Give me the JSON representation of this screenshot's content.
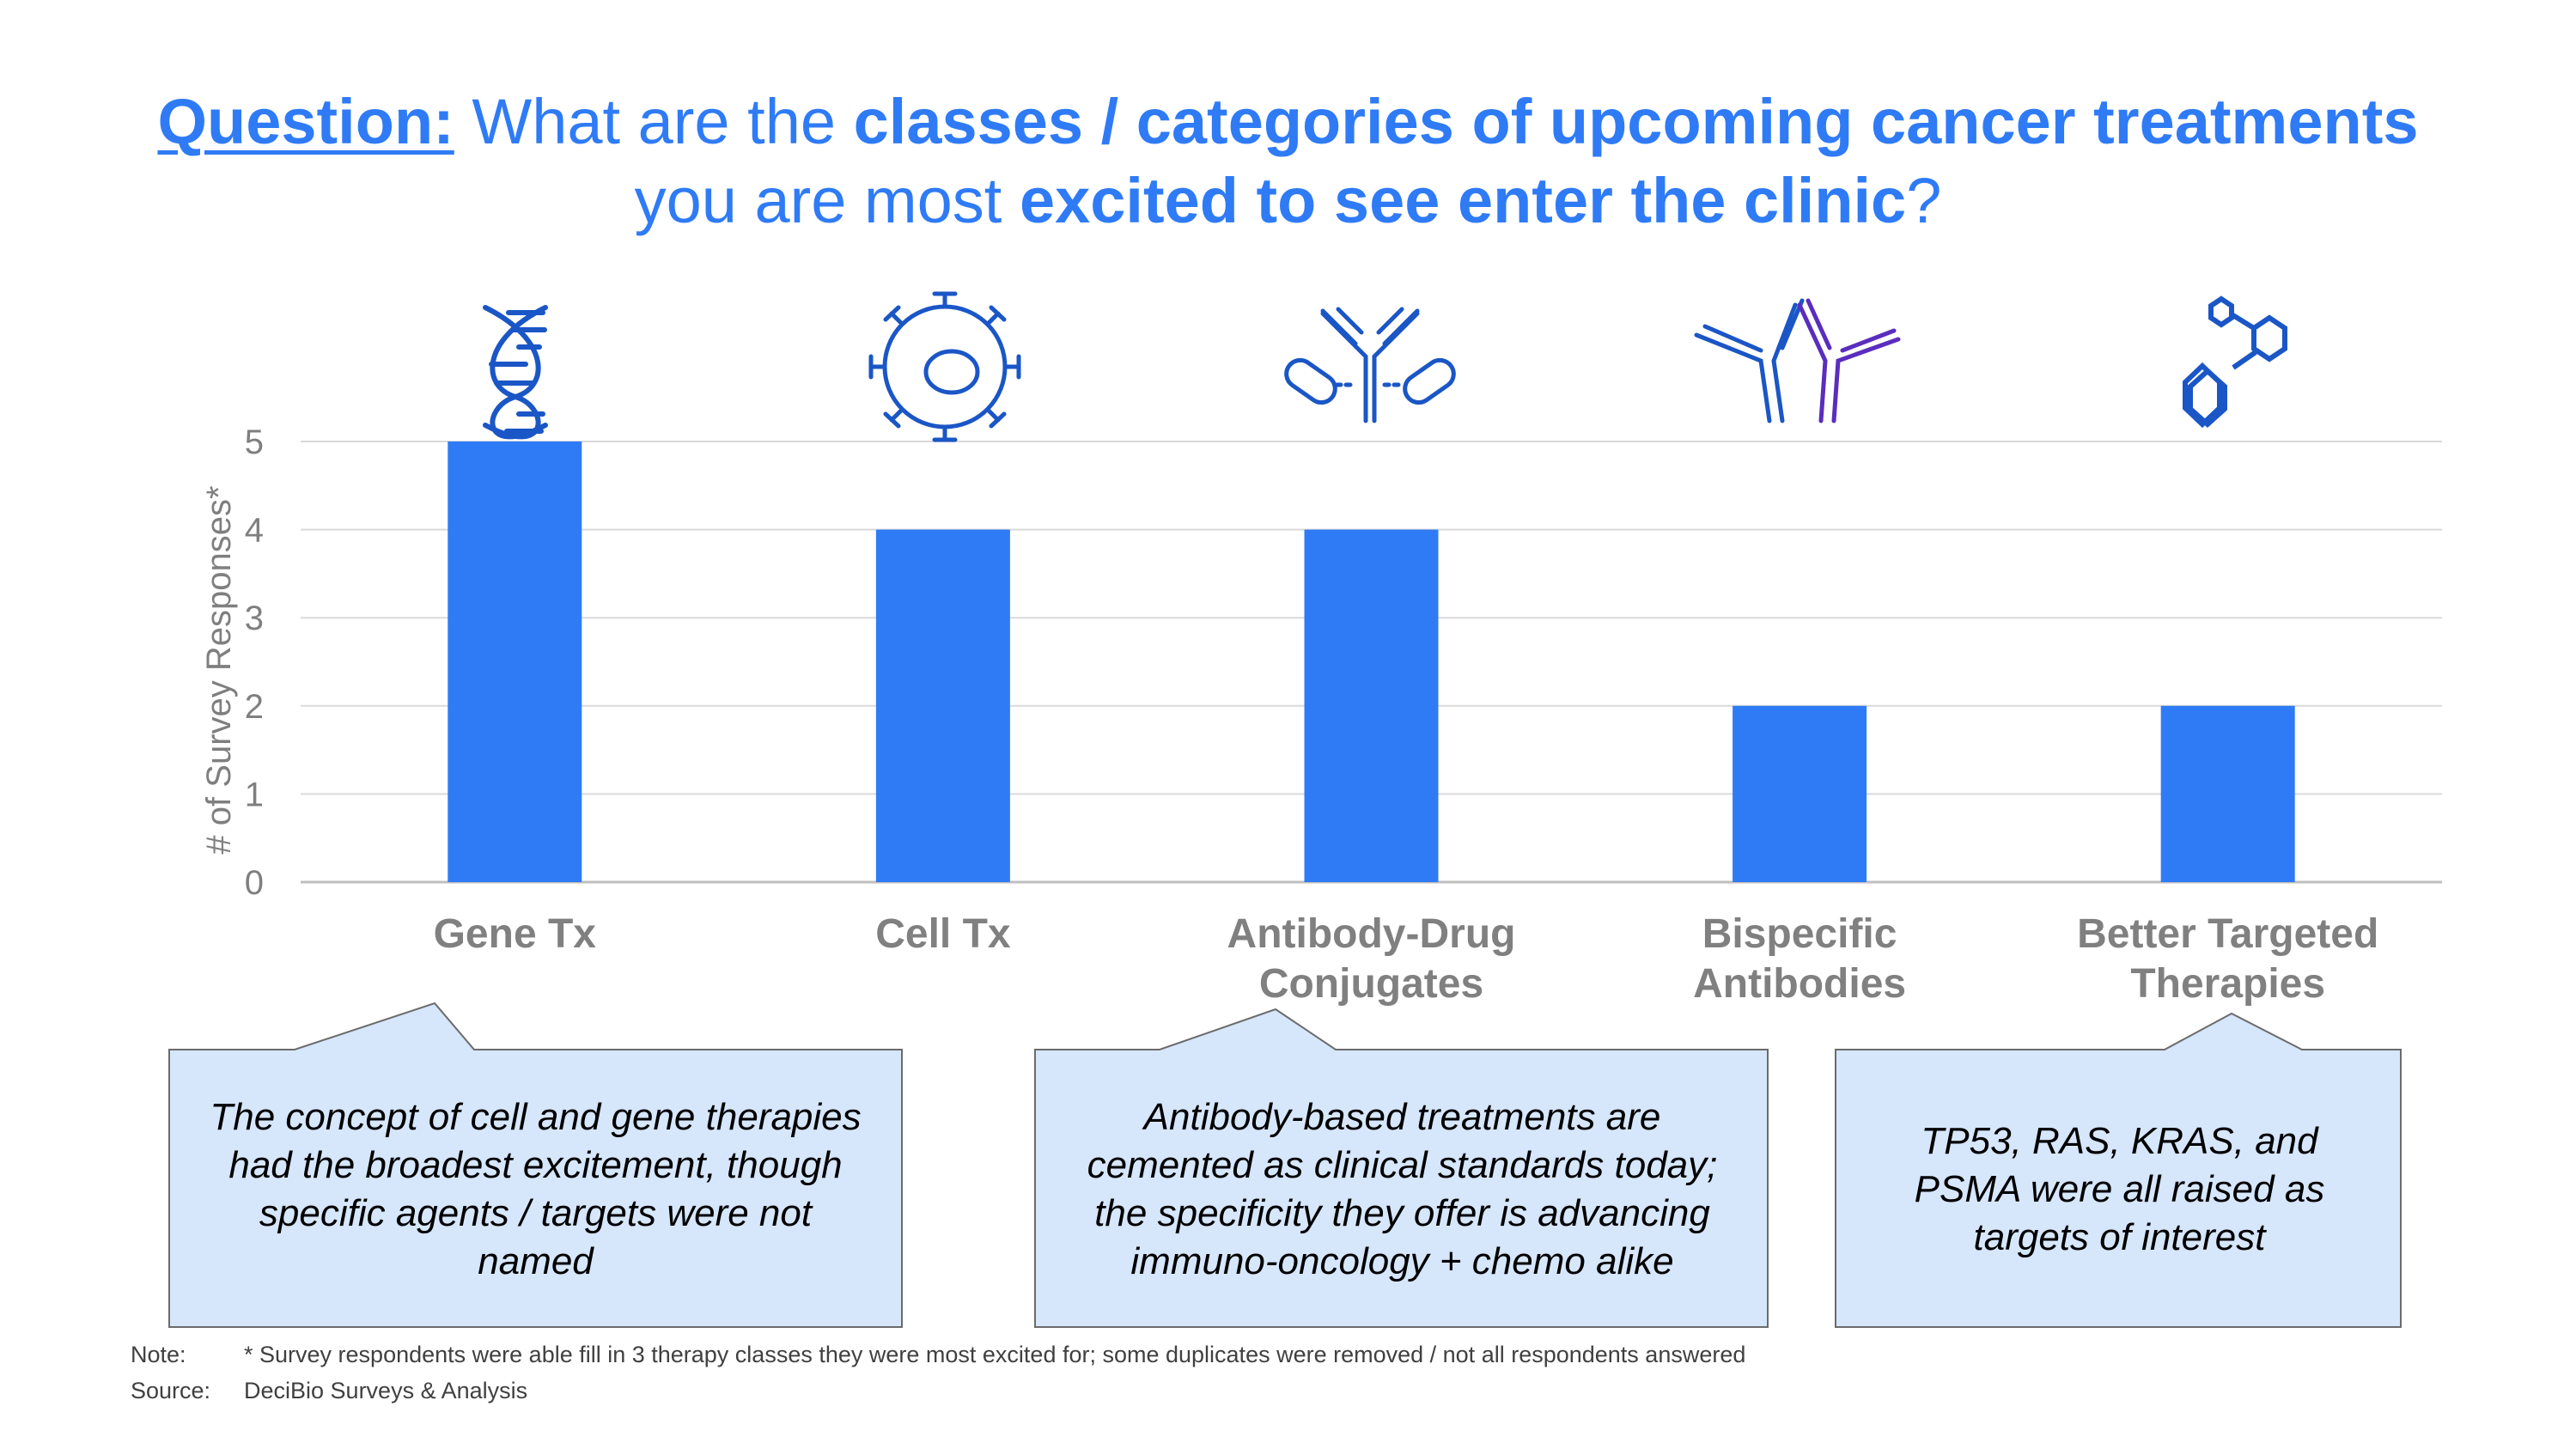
{
  "title": {
    "question_label": "Question:",
    "line1_a": " What are the ",
    "line1_b": "classes / categories of upcoming cancer treatments",
    "line2_a": "you are most ",
    "line2_b": "excited to see enter the clinic",
    "line2_c": "?"
  },
  "colors": {
    "bar": "#2f7bf6",
    "accent": "#2f7bf6",
    "callout_fill": "#d6e6fb",
    "callout_border": "#6b6b6b",
    "icon": "#1a56c6",
    "icon_purple": "#5a2dbe"
  },
  "chart_data": {
    "type": "bar",
    "title": "What are the classes / categories of upcoming cancer treatments you are most excited to see enter the clinic?",
    "categories": [
      "Gene Tx",
      "Cell Tx",
      "Antibody-Drug Conjugates",
      "Bispecific Antibodies",
      "Better Targeted Therapies"
    ],
    "category_lines": [
      [
        "Gene Tx"
      ],
      [
        "Cell Tx"
      ],
      [
        "Antibody-Drug",
        "Conjugates"
      ],
      [
        "Bispecific",
        "Antibodies"
      ],
      [
        "Better Targeted",
        "Therapies"
      ]
    ],
    "values": [
      5,
      4,
      4,
      2,
      2
    ],
    "xlabel": "",
    "ylabel": "# of Survey Responses*",
    "ylim": [
      0,
      5
    ],
    "yticks": [
      0,
      1,
      2,
      3,
      4,
      5
    ],
    "grid": true
  },
  "icons": [
    "dna-icon",
    "cell-icon",
    "antibody-drug-conjugate-icon",
    "bispecific-antibody-icon",
    "molecule-icon"
  ],
  "callouts": [
    {
      "text": "The concept of cell and gene therapies had the broadest excitement, though specific agents / targets were not named"
    },
    {
      "text": "Antibody-based treatments are cemented as clinical standards today; the specificity they offer is advancing immuno-oncology + chemo alike"
    },
    {
      "text": "TP53, RAS, KRAS, and PSMA were all raised as targets of interest"
    }
  ],
  "footer": {
    "note_label": "Note:",
    "note_text": "* Survey respondents were able fill in 3 therapy classes they were most excited for; some duplicates were removed / not all respondents answered",
    "source_label": "Source:",
    "source_text": "DeciBio Surveys & Analysis"
  }
}
